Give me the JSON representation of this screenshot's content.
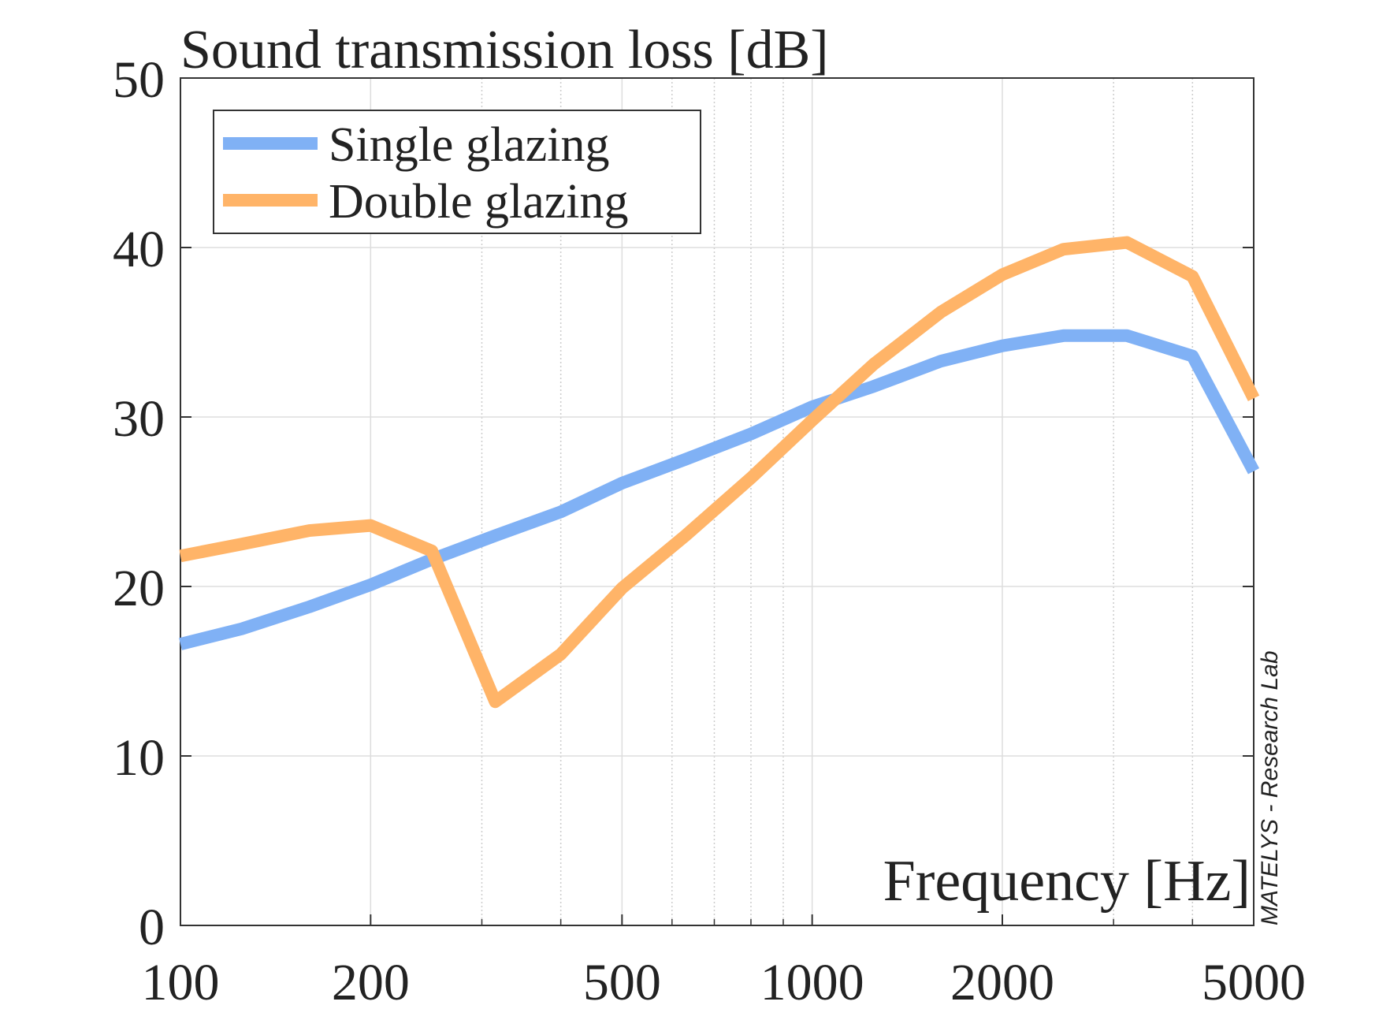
{
  "chart_data": {
    "type": "line",
    "title": "Sound transmission loss [dB]",
    "xlabel": "Frequency [Hz]",
    "annotation": "MATELYS - Research Lab",
    "x": [
      100,
      125,
      160,
      200,
      250,
      315,
      400,
      500,
      630,
      800,
      1000,
      1250,
      1600,
      2000,
      2500,
      3150,
      4000,
      5000
    ],
    "series": [
      {
        "name": "Single glazing",
        "color": "#80b1f5",
        "values": [
          16.6,
          17.5,
          18.8,
          20.1,
          21.6,
          23.0,
          24.4,
          26.1,
          27.5,
          29.0,
          30.6,
          31.8,
          33.3,
          34.2,
          34.8,
          34.8,
          33.6,
          26.8
        ]
      },
      {
        "name": "Double glazing",
        "color": "#ffb468",
        "values": [
          21.8,
          22.5,
          23.3,
          23.6,
          22.1,
          13.2,
          16.0,
          19.9,
          23.0,
          26.4,
          29.8,
          33.1,
          36.2,
          38.4,
          39.9,
          40.3,
          38.3,
          31.1
        ]
      }
    ],
    "xlim": [
      100,
      5000
    ],
    "xticks": [
      100,
      200,
      500,
      1000,
      2000,
      5000
    ],
    "xminorticks": [
      300,
      400,
      600,
      700,
      800,
      900,
      3000,
      4000
    ],
    "ylim": [
      0,
      50
    ],
    "yticks": [
      0,
      10,
      20,
      30,
      40,
      50
    ],
    "xscale": "log",
    "grid": true,
    "legend": "upper left"
  }
}
